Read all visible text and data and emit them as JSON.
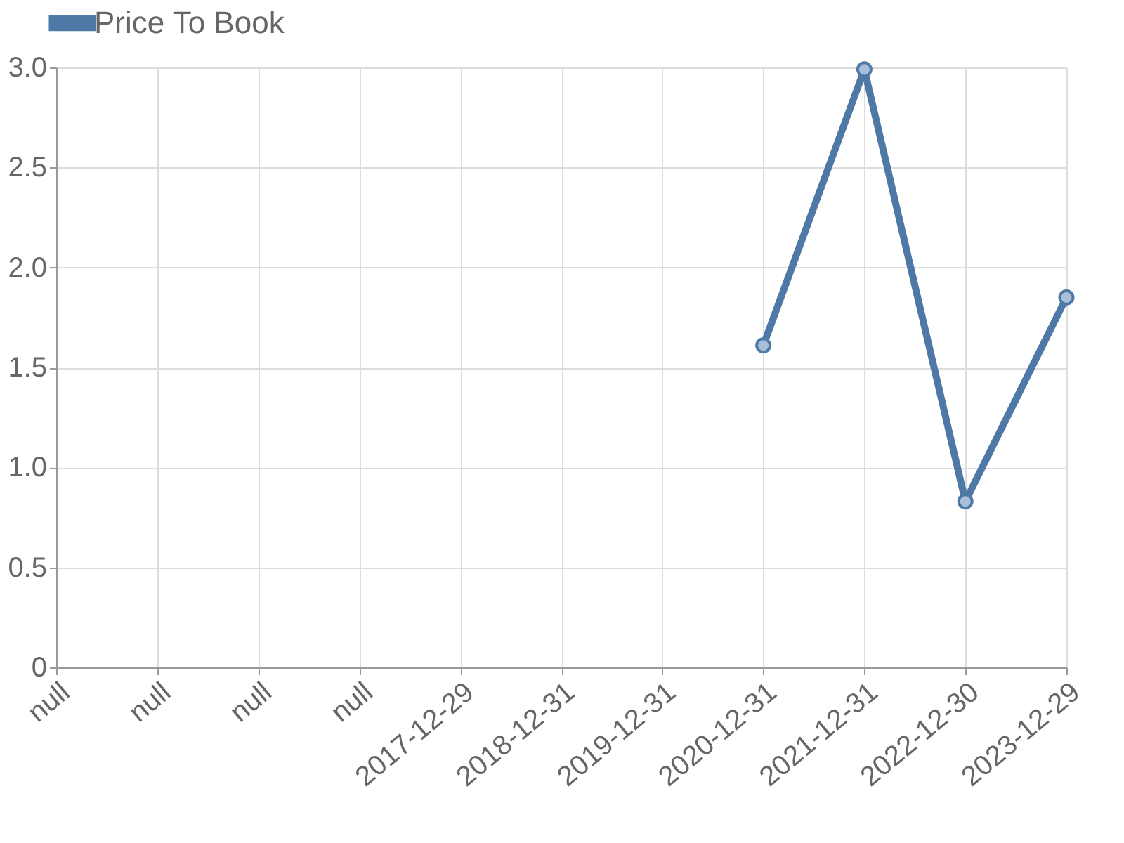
{
  "chart_data": {
    "type": "line",
    "categories": [
      "null",
      "null",
      "null",
      "null",
      "2017-12-29",
      "2018-12-31",
      "2019-12-31",
      "2020-12-31",
      "2021-12-31",
      "2022-12-30",
      "2023-12-29"
    ],
    "series": [
      {
        "name": "Price To Book",
        "color": "#4e79a7",
        "values": [
          null,
          null,
          null,
          null,
          null,
          null,
          null,
          1.61,
          2.99,
          0.83,
          1.85
        ]
      }
    ],
    "ylim": [
      0,
      3.0
    ],
    "yticks": [
      {
        "value": 0,
        "label": "0"
      },
      {
        "value": 0.5,
        "label": "0.5"
      },
      {
        "value": 1,
        "label": "1.0"
      },
      {
        "value": 1.5,
        "label": "1.5"
      },
      {
        "value": 2,
        "label": "2.0"
      },
      {
        "value": 2.5,
        "label": "2.5"
      },
      {
        "value": 3,
        "label": "3.0"
      }
    ],
    "grid": true,
    "legend": "top",
    "marker": "circle",
    "line_style": "solid"
  }
}
